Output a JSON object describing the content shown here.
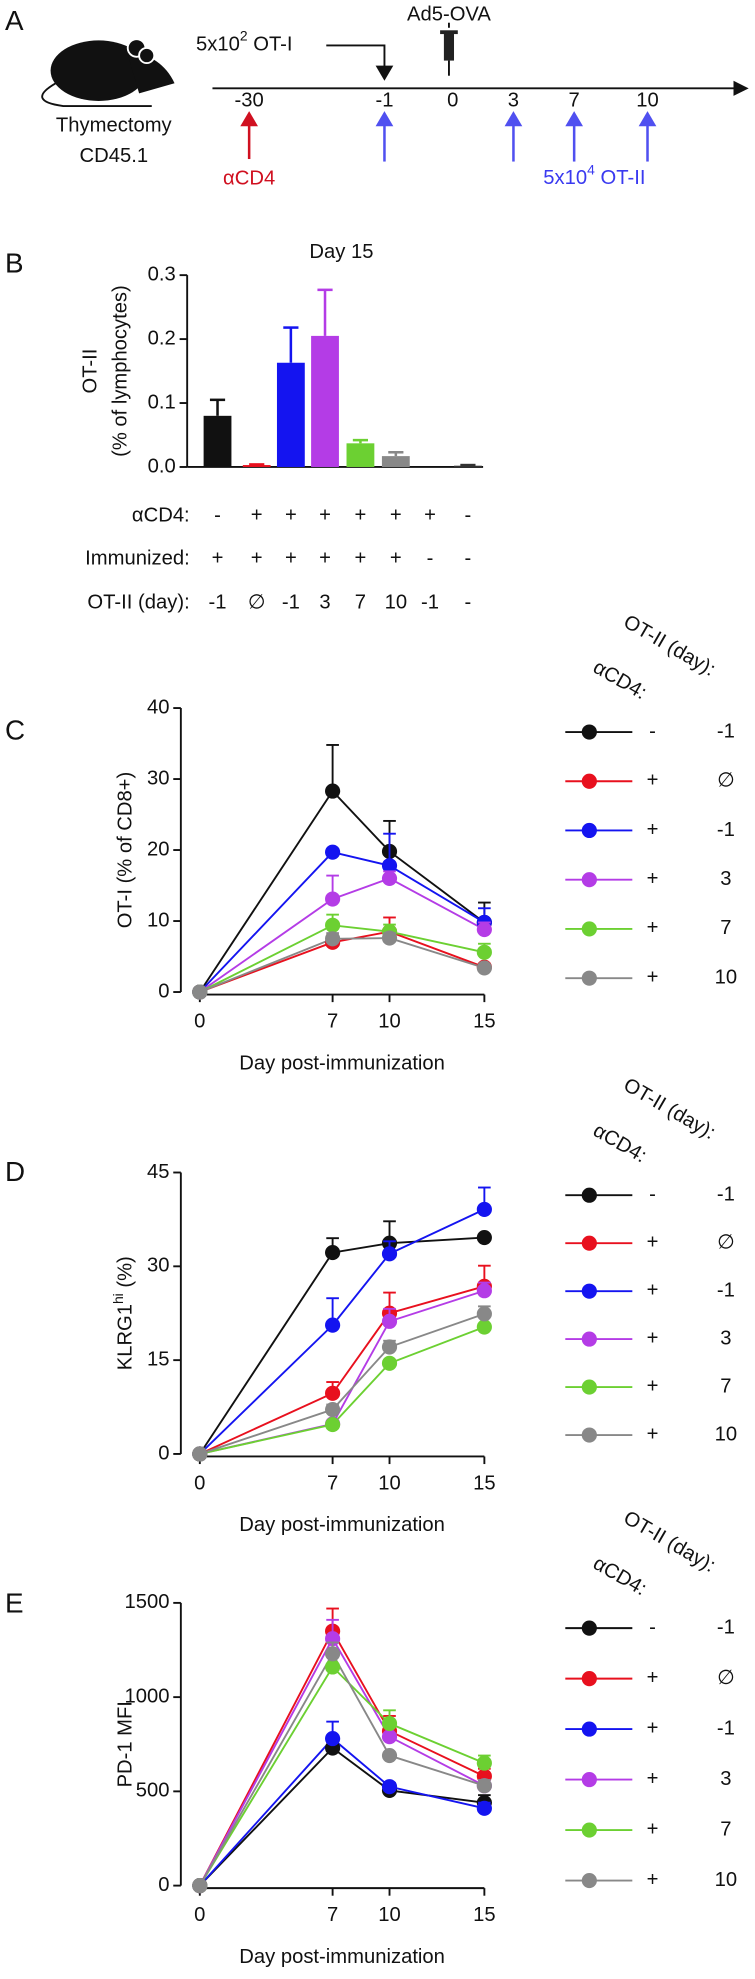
{
  "timeline": {
    "label": "A",
    "mouse_lines": [
      "Thymectomy",
      "CD45.1"
    ],
    "days": [
      "-30",
      "-1",
      "0",
      "3",
      "7",
      "10"
    ],
    "ot1": {
      "base": "5x10",
      "exp": "2",
      "suffix": " OT-I"
    },
    "immunization": "Ad5-OVA",
    "acd4": "αCD4",
    "ot2": {
      "base": "5x10",
      "exp": "4",
      "suffix": " OT-II"
    }
  },
  "chart_data": [
    {
      "type": "bar",
      "label": "B",
      "title": "Day 15",
      "ylabel": "OT-II",
      "ylabel_line2": "(% of lymphocytes)",
      "ylim": [
        0,
        0.3
      ],
      "yticks": [
        {
          "value": 0,
          "label": "0.0"
        },
        0.1,
        0.2,
        0.3
      ],
      "values": [
        0.08,
        0.003,
        0.163,
        0.205,
        0.037,
        0.017,
        0,
        0.002
      ],
      "errors": [
        0.025,
        0.001,
        0.055,
        0.072,
        0.005,
        0.006,
        0,
        0.001
      ],
      "colors": [
        "#111111",
        "#e8101e",
        "#1414f0",
        "#b43ce6",
        "#6cd032",
        "#888888",
        "#555555",
        "#333333"
      ],
      "condition_rows": [
        {
          "name": "αCD4:",
          "values": [
            "-",
            "+",
            "+",
            "+",
            "+",
            "+",
            "+",
            "-"
          ]
        },
        {
          "name": "Immunized:",
          "values": [
            "+",
            "+",
            "+",
            "+",
            "+",
            "+",
            "-",
            "-"
          ]
        },
        {
          "name": "OT-II (day):",
          "values": [
            "-1",
            "∅",
            "-1",
            "3",
            "7",
            "10",
            "-1",
            "-"
          ]
        }
      ]
    },
    {
      "type": "line",
      "label": "C",
      "xlabel": "Day post-immunization",
      "ylabel": "OT-I (% of CD8+)",
      "xlim": [
        0,
        15
      ],
      "xticks": [
        0,
        7,
        10,
        15
      ],
      "ylim": [
        0,
        40
      ],
      "yticks": [
        0,
        10,
        20,
        30,
        40
      ],
      "x": [
        0,
        7,
        10,
        15
      ],
      "legend_headers": [
        "αCD4:",
        "OT-II (day):"
      ],
      "series": [
        {
          "acd4": "-",
          "ot_ii_day": "-1",
          "color": "#111111",
          "values": [
            0,
            28.3,
            19.8,
            9.8
          ],
          "errors": [
            0,
            6.5,
            4.3,
            2.8
          ]
        },
        {
          "acd4": "+",
          "ot_ii_day": "∅",
          "color": "#e8101e",
          "values": [
            0,
            7,
            8.5,
            3.5
          ],
          "errors": [
            0,
            1,
            2,
            0.5
          ]
        },
        {
          "acd4": "+",
          "ot_ii_day": "-1",
          "color": "#1414f0",
          "values": [
            0,
            19.7,
            17.8,
            9.8
          ],
          "errors": [
            0,
            0,
            4.5,
            2
          ]
        },
        {
          "acd4": "+",
          "ot_ii_day": "3",
          "color": "#b43ce6",
          "values": [
            0,
            13.1,
            16,
            8.8
          ],
          "errors": [
            0,
            3.3,
            1,
            1
          ]
        },
        {
          "acd4": "+",
          "ot_ii_day": "7",
          "color": "#6cd032",
          "values": [
            0,
            9.4,
            8.5,
            5.6
          ],
          "errors": [
            0,
            1.5,
            1,
            1.2
          ]
        },
        {
          "acd4": "+",
          "ot_ii_day": "10",
          "color": "#888888",
          "values": [
            0,
            7.5,
            7.6,
            3.4
          ],
          "errors": [
            0,
            0.8,
            0.7,
            0.4
          ]
        }
      ]
    },
    {
      "type": "line",
      "label": "D",
      "xlabel": "Day post-immunization",
      "ylabel": "KLRG1",
      "ylabel_sup": "hi",
      "ylabel_suffix": " (%)",
      "xlim": [
        0,
        15
      ],
      "xticks": [
        0,
        7,
        10,
        15
      ],
      "ylim": [
        0,
        45
      ],
      "yticks": [
        0,
        15,
        30,
        45
      ],
      "x": [
        0,
        7,
        10,
        15
      ],
      "legend_headers": [
        "αCD4:",
        "OT-II (day):"
      ],
      "series": [
        {
          "acd4": "-",
          "ot_ii_day": "-1",
          "color": "#111111",
          "values": [
            0,
            32.2,
            33.7,
            34.6
          ],
          "errors": [
            0,
            2.3,
            3.5,
            0
          ]
        },
        {
          "acd4": "+",
          "ot_ii_day": "∅",
          "color": "#e8101e",
          "values": [
            0,
            9.7,
            22.5,
            26.8
          ],
          "errors": [
            0,
            1.8,
            3.3,
            3.3
          ]
        },
        {
          "acd4": "+",
          "ot_ii_day": "-1",
          "color": "#1414f0",
          "values": [
            0,
            20.6,
            32,
            39.1
          ],
          "errors": [
            0,
            4.3,
            2,
            3.5
          ]
        },
        {
          "acd4": "+",
          "ot_ii_day": "3",
          "color": "#b43ce6",
          "values": [
            0,
            4.8,
            21.2,
            26.1
          ],
          "errors": [
            0,
            0,
            2,
            1.3
          ]
        },
        {
          "acd4": "+",
          "ot_ii_day": "7",
          "color": "#6cd032",
          "values": [
            0,
            4.7,
            14.5,
            20.3
          ],
          "errors": [
            0,
            0,
            0,
            0
          ]
        },
        {
          "acd4": "+",
          "ot_ii_day": "10",
          "color": "#888888",
          "values": [
            0,
            7.1,
            17.1,
            22.4
          ],
          "errors": [
            0,
            0.8,
            1,
            1.2
          ]
        }
      ]
    },
    {
      "type": "line",
      "label": "E",
      "xlabel": "Day post-immunization",
      "ylabel": "PD-1 MFI",
      "xlim": [
        0,
        15
      ],
      "xticks": [
        0,
        7,
        10,
        15
      ],
      "ylim": [
        0,
        1500
      ],
      "yticks": [
        0,
        500,
        1000,
        1500
      ],
      "x": [
        0,
        7,
        10,
        15
      ],
      "legend_headers": [
        "αCD4:",
        "OT-II (day):"
      ],
      "series": [
        {
          "acd4": "-",
          "ot_ii_day": "-1",
          "color": "#111111",
          "values": [
            0,
            730,
            505,
            440
          ],
          "errors": [
            0,
            30,
            20,
            40
          ]
        },
        {
          "acd4": "+",
          "ot_ii_day": "∅",
          "color": "#e8101e",
          "values": [
            0,
            1350,
            820,
            580
          ],
          "errors": [
            0,
            120,
            80,
            40
          ]
        },
        {
          "acd4": "+",
          "ot_ii_day": "-1",
          "color": "#1414f0",
          "values": [
            0,
            780,
            525,
            410
          ],
          "errors": [
            0,
            90,
            20,
            30
          ]
        },
        {
          "acd4": "+",
          "ot_ii_day": "3",
          "color": "#b43ce6",
          "values": [
            0,
            1310,
            790,
            530
          ],
          "errors": [
            0,
            100,
            60,
            30
          ]
        },
        {
          "acd4": "+",
          "ot_ii_day": "7",
          "color": "#6cd032",
          "values": [
            0,
            1160,
            860,
            650
          ],
          "errors": [
            0,
            60,
            70,
            40
          ]
        },
        {
          "acd4": "+",
          "ot_ii_day": "10",
          "color": "#888888",
          "values": [
            0,
            1230,
            690,
            530
          ],
          "errors": [
            0,
            60,
            0,
            30
          ]
        }
      ]
    }
  ]
}
